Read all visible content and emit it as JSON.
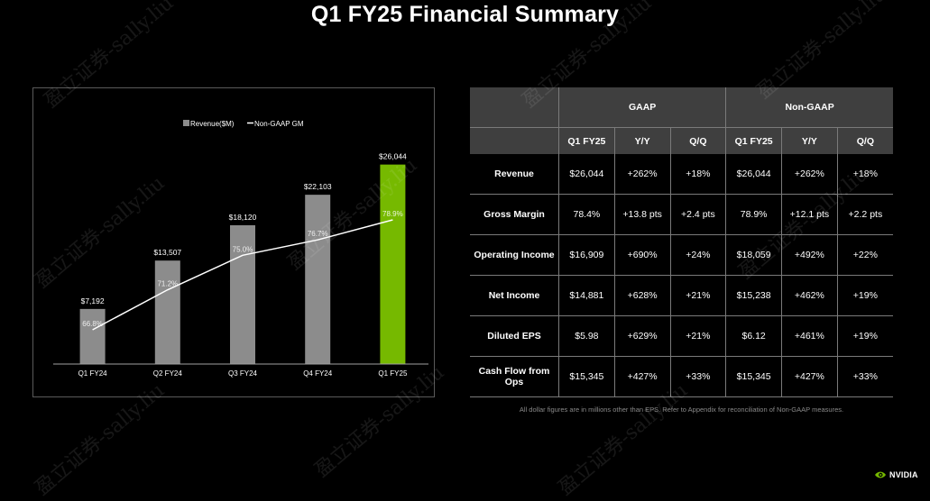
{
  "title": "Q1 FY25 Financial Summary",
  "chart_data": {
    "type": "bar",
    "categories": [
      "Q1 FY24",
      "Q2 FY24",
      "Q3 FY24",
      "Q4 FY24",
      "Q1 FY25"
    ],
    "series": [
      {
        "name": "Revenue($M)",
        "type": "bar",
        "values": [
          7192,
          13507,
          18120,
          22103,
          26044
        ],
        "labels": [
          "$7,192",
          "$13,507",
          "$18,120",
          "$22,103",
          "$26,044"
        ]
      },
      {
        "name": "Non-GAAP GM",
        "type": "line",
        "values": [
          66.8,
          71.2,
          75.0,
          76.7,
          78.9
        ],
        "labels": [
          "66.8%",
          "71.2%",
          "75.0%",
          "76.7%",
          "78.9%"
        ]
      }
    ],
    "colors": {
      "bar": "#8c8c8c",
      "highlight": "#76b900",
      "line": "#ffffff"
    },
    "legend": "top-center",
    "ylim": [
      0,
      30000
    ],
    "y2lim": [
      50,
      90
    ],
    "grid": false
  },
  "table": {
    "groups": [
      "GAAP",
      "Non-GAAP"
    ],
    "subheaders": [
      "Q1 FY25",
      "Y/Y",
      "Q/Q",
      "Q1 FY25",
      "Y/Y",
      "Q/Q"
    ],
    "rows": [
      {
        "label": "Revenue",
        "cells": [
          "$26,044",
          "+262%",
          "+18%",
          "$26,044",
          "+262%",
          "+18%"
        ]
      },
      {
        "label": "Gross Margin",
        "cells": [
          "78.4%",
          "+13.8 pts",
          "+2.4 pts",
          "78.9%",
          "+12.1 pts",
          "+2.2 pts"
        ]
      },
      {
        "label": "Operating Income",
        "cells": [
          "$16,909",
          "+690%",
          "+24%",
          "$18,059",
          "+492%",
          "+22%"
        ]
      },
      {
        "label": "Net Income",
        "cells": [
          "$14,881",
          "+628%",
          "+21%",
          "$15,238",
          "+462%",
          "+19%"
        ]
      },
      {
        "label": "Diluted EPS",
        "cells": [
          "$5.98",
          "+629%",
          "+21%",
          "$6.12",
          "+461%",
          "+19%"
        ]
      },
      {
        "label": "Cash Flow from Ops",
        "cells": [
          "$15,345",
          "+427%",
          "+33%",
          "$15,345",
          "+427%",
          "+33%"
        ]
      }
    ]
  },
  "footnote": "All dollar figures are in millions other than EPS. Refer to Appendix for reconciliation of Non-GAAP measures.",
  "logo": {
    "text": "NVIDIA",
    "icon": "nvidia-eye-icon",
    "color": "#76b900"
  },
  "watermark": "盈立证券-sally.liu"
}
